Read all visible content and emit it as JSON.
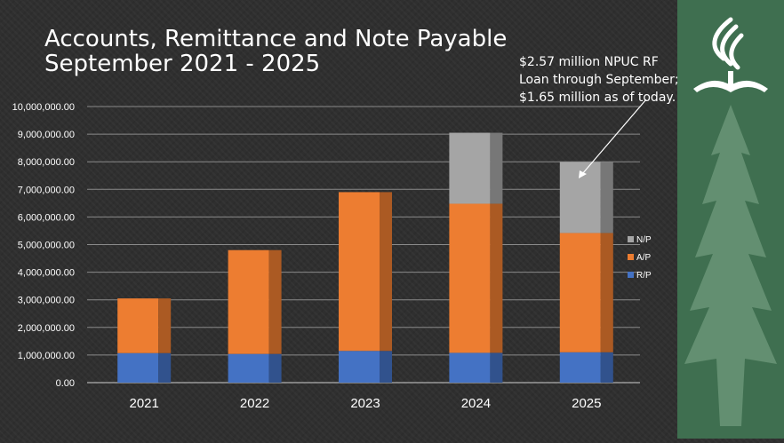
{
  "title_lines": [
    "Accounts, Remittance and Note Payable",
    "September 2021 - 2025"
  ],
  "annotation_lines": [
    "$2.57 million NPUC RF",
    "Loan through September;",
    "$1.65 million as of today."
  ],
  "colors": {
    "rp": "#4472c4",
    "ap": "#ed7d31",
    "np": "#a5a5a5",
    "side_panel": "#3f6f50"
  },
  "chart_data": {
    "type": "bar",
    "stacked": true,
    "title": "Accounts, Remittance and Note Payable September 2021 - 2025",
    "categories": [
      "2021",
      "2022",
      "2023",
      "2024",
      "2025"
    ],
    "series": [
      {
        "name": "R/P",
        "values": [
          1070000,
          1040000,
          1150000,
          1080000,
          1100000
        ]
      },
      {
        "name": "A/P",
        "values": [
          1980000,
          3760000,
          5750000,
          5400000,
          4320000
        ]
      },
      {
        "name": "N/P",
        "values": [
          0,
          0,
          0,
          2570000,
          2570000
        ]
      }
    ],
    "legend": [
      "N/P",
      "A/P",
      "R/P"
    ],
    "legend_position": "right",
    "ylim": [
      0,
      10000000
    ],
    "yticks": [
      "0.00",
      "1,000,000.00",
      "2,000,000.00",
      "3,000,000.00",
      "4,000,000.00",
      "5,000,000.00",
      "6,000,000.00",
      "7,000,000.00",
      "8,000,000.00",
      "9,000,000.00",
      "10,000,000.00"
    ],
    "grid": true
  }
}
